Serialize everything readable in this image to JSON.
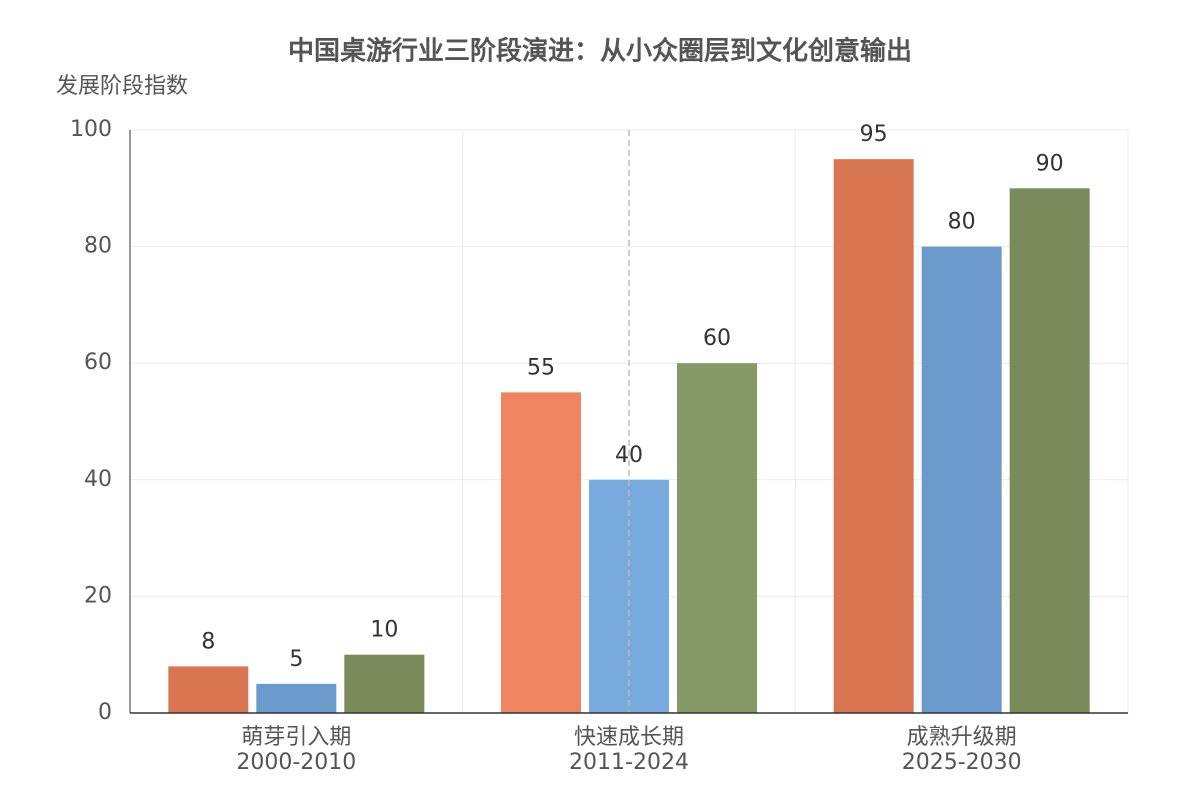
{
  "chart_data": {
    "type": "bar",
    "title": "中国桌游行业三阶段演进：从小众圈层到文化创意输出",
    "y_label": "发展阶段指数",
    "categories": [
      [
        "萌芽引入期",
        "2000-2010"
      ],
      [
        "快速成长期",
        "2011-2024"
      ],
      [
        "成熟升级期",
        "2025-2030"
      ]
    ],
    "series": [
      {
        "colors": [
          "#d97652",
          "#ee8460",
          "#d97652"
        ],
        "values": [
          8,
          55,
          95
        ]
      },
      {
        "colors": [
          "#6b9bcc",
          "#78aade",
          "#6b9bcc"
        ],
        "values": [
          5,
          40,
          80
        ]
      },
      {
        "colors": [
          "#7a8a5a",
          "#849966",
          "#7a8a5a"
        ],
        "values": [
          10,
          60,
          90
        ]
      }
    ],
    "ylim": [
      0,
      100
    ],
    "yticks": [
      0,
      20,
      40,
      60,
      80,
      100
    ],
    "grid": true
  }
}
